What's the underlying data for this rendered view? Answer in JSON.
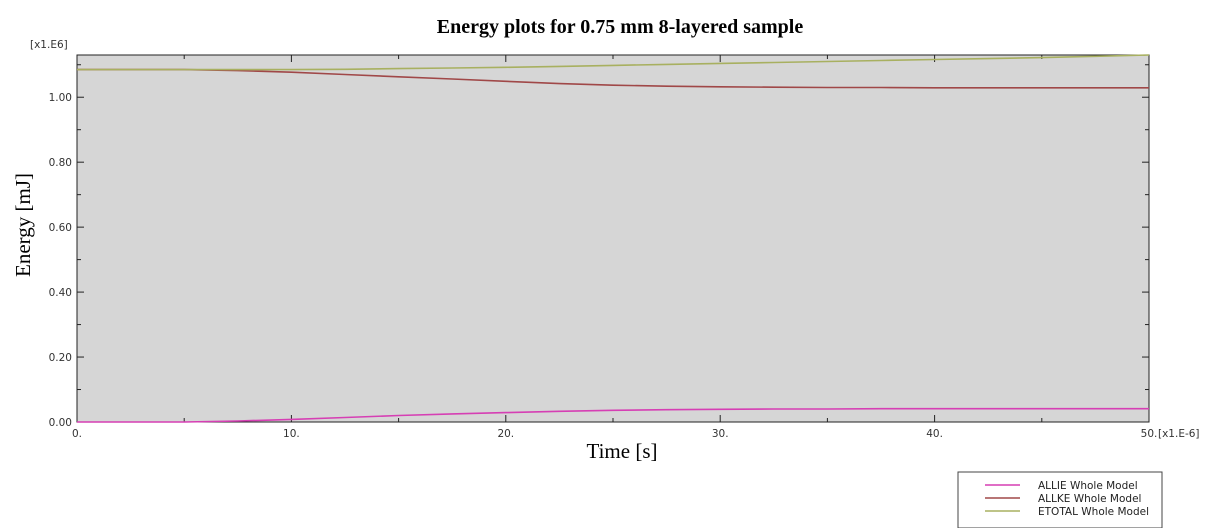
{
  "chart_data": {
    "type": "line",
    "title": "Energy plots for 0.75 mm 8-layered sample",
    "xlabel": "Time [s]",
    "ylabel": "Energy [mJ]",
    "x_multiplier": "[x1.E-6]",
    "y_multiplier": "[x1.E6]",
    "xlim": [
      0,
      50
    ],
    "ylim": [
      0,
      1.13
    ],
    "x_ticks": [
      0,
      10,
      20,
      30,
      40,
      50
    ],
    "x_tick_labels": [
      "0.",
      "10.",
      "20.",
      "30.",
      "40.",
      "50."
    ],
    "y_ticks": [
      0,
      0.2,
      0.4,
      0.6,
      0.8,
      1.0
    ],
    "y_tick_labels": [
      "0.00",
      "0.20",
      "0.40",
      "0.60",
      "0.80",
      "1.00"
    ],
    "x_minor_step": 5,
    "y_minor_step": 0.1,
    "plot_background": "#d6d6d6",
    "grid": false,
    "legend_position": "bottom-right",
    "x": [
      0,
      2.5,
      5,
      7.5,
      10,
      12.5,
      15,
      17.5,
      20,
      22.5,
      25,
      27.5,
      30,
      32.5,
      35,
      37.5,
      40,
      42.5,
      45,
      47.5,
      50
    ],
    "series": [
      {
        "name": "ALLIE Whole Model",
        "color": "#d63fb4",
        "values": [
          0.0,
          0.0,
          0.0,
          0.003,
          0.008,
          0.014,
          0.02,
          0.025,
          0.029,
          0.033,
          0.036,
          0.038,
          0.039,
          0.04,
          0.04,
          0.041,
          0.041,
          0.041,
          0.041,
          0.041,
          0.041
        ]
      },
      {
        "name": "ALLKE Whole Model",
        "color": "#a04848",
        "values": [
          1.085,
          1.085,
          1.085,
          1.082,
          1.077,
          1.07,
          1.063,
          1.056,
          1.049,
          1.042,
          1.037,
          1.034,
          1.032,
          1.031,
          1.03,
          1.03,
          1.029,
          1.029,
          1.029,
          1.029,
          1.029
        ]
      },
      {
        "name": "ETOTAL Whole Model",
        "color": "#a8b060",
        "values": [
          1.085,
          1.085,
          1.085,
          1.085,
          1.085,
          1.086,
          1.088,
          1.09,
          1.092,
          1.095,
          1.098,
          1.101,
          1.104,
          1.107,
          1.11,
          1.113,
          1.116,
          1.119,
          1.122,
          1.126,
          1.13
        ]
      }
    ]
  }
}
